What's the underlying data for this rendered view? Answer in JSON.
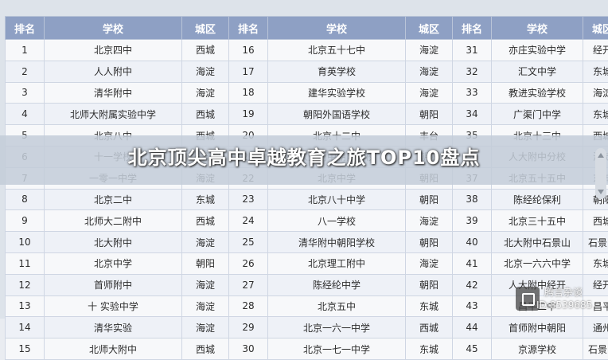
{
  "banner": {
    "title": "北京顶尖高中卓越教育之旅TOP10盘点"
  },
  "table": {
    "headers": [
      "排名",
      "学校",
      "城区",
      "排名",
      "学校",
      "城区",
      "排名",
      "学校",
      "城区"
    ],
    "rows": [
      [
        "1",
        "北京四中",
        "西城",
        "16",
        "北京五十七中",
        "海淀",
        "31",
        "亦庄实验中学",
        "经开"
      ],
      [
        "2",
        "人人附中",
        "海淀",
        "17",
        "育英学校",
        "海淀",
        "32",
        "汇文中学",
        "东城"
      ],
      [
        "3",
        "清华附中",
        "海淀",
        "18",
        "建华实验学校",
        "海淀",
        "33",
        "教进实验学校",
        "海淀"
      ],
      [
        "4",
        "北师大附属实验中学",
        "西城",
        "19",
        "朝阳外国语学校",
        "朝阳",
        "34",
        "广渠门中学",
        "东城"
      ],
      [
        "5",
        "北京八中",
        "西城",
        "20",
        "北京十二中",
        "丰台",
        "35",
        "北京十三中",
        "西城"
      ],
      [
        "6",
        "十一学校",
        "海淀",
        "21",
        "人大附中朝阳分校",
        "朝阳",
        "36",
        "人大附中分校",
        "海淀"
      ],
      [
        "7",
        "一零一中学",
        "海淀",
        "22",
        "北京中学",
        "朝阳",
        "37",
        "北京五十五中",
        "东城"
      ],
      [
        "8",
        "北京二中",
        "东城",
        "23",
        "北京八十中学",
        "朝阳",
        "38",
        "陈经纶保利",
        "朝阳"
      ],
      [
        "9",
        "北师大二附中",
        "西城",
        "24",
        "八一学校",
        "海淀",
        "39",
        "北京三十五中",
        "西城"
      ],
      [
        "10",
        "北大附中",
        "海淀",
        "25",
        "清华附中朝阳学校",
        "朝阳",
        "40",
        "北大附中石景山",
        "石景山"
      ],
      [
        "11",
        "北京中学",
        "朝阳",
        "26",
        "北京理工附中",
        "海淀",
        "41",
        "北京一六六中学",
        "东城"
      ],
      [
        "12",
        "首师附中",
        "海淀",
        "27",
        "陈经纶中学",
        "朝阳",
        "42",
        "人大附中经开",
        "经开"
      ],
      [
        "13",
        "十   实验中学",
        "海淀",
        "28",
        "北京五中",
        "东城",
        "43",
        "昌平二中",
        "昌平"
      ],
      [
        "14",
        "清华实验",
        "海淀",
        "29",
        "北京一六一中学",
        "西城",
        "44",
        "首师附中朝阳",
        "通州"
      ],
      [
        "15",
        "北师大附中",
        "西城",
        "30",
        "北京一七一中学",
        "东城",
        "45",
        "京源学校",
        "石景山"
      ]
    ]
  },
  "watermark": {
    "line1": "腾言杂谈",
    "line2": "ID:8539685"
  },
  "icons": {
    "scroll": "scrollbar-icon",
    "logo": "watermark-logo-icon"
  }
}
